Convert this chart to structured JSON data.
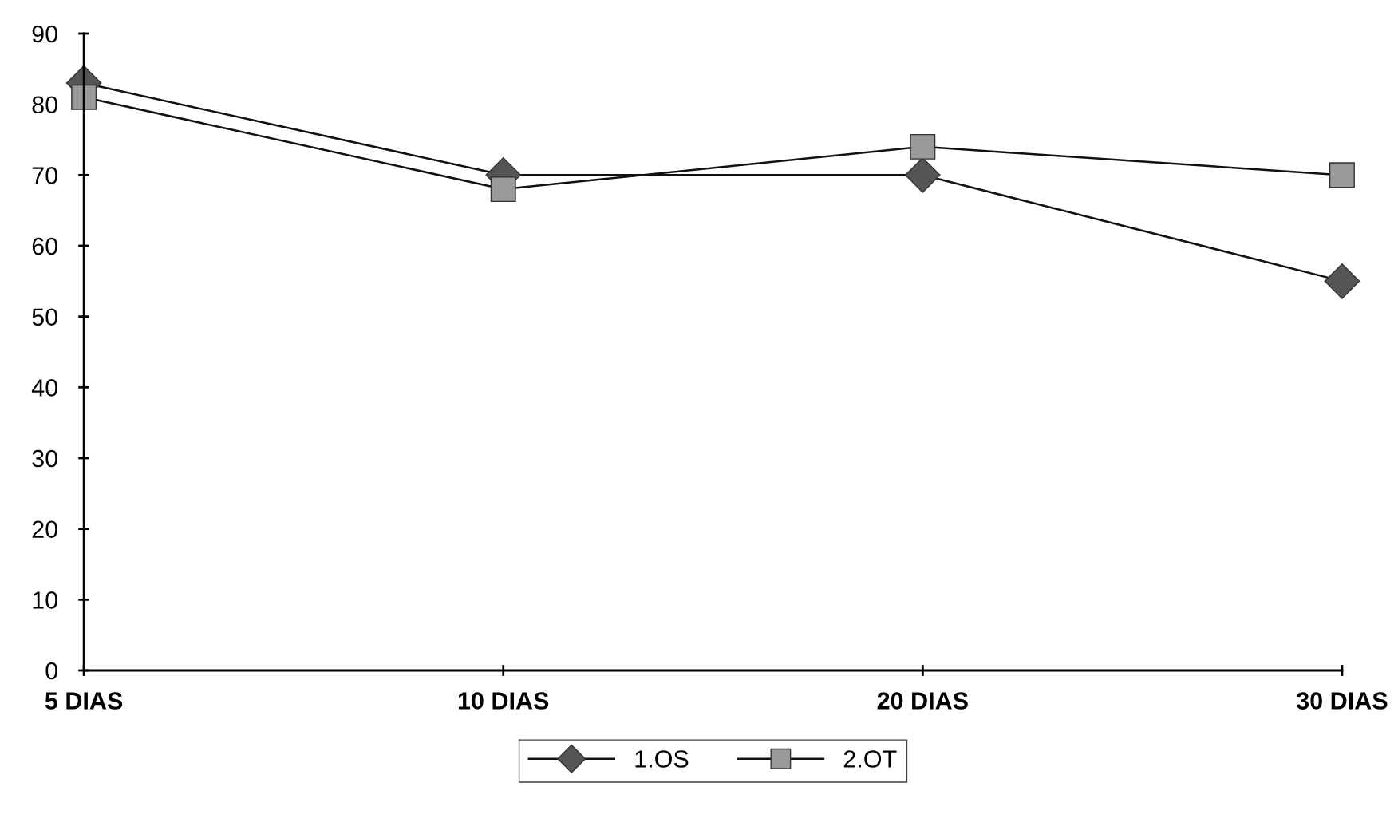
{
  "chart_data": {
    "type": "line",
    "categories": [
      "5 DIAS",
      "10 DIAS",
      "20 DIAS",
      "30 DIAS"
    ],
    "series": [
      {
        "name": "1.OS",
        "color": "#555555",
        "marker": "diamond",
        "values": [
          83,
          70,
          70,
          55
        ]
      },
      {
        "name": "2.OT",
        "color": "#9a9a9a",
        "marker": "square",
        "values": [
          81,
          68,
          74,
          70
        ]
      }
    ],
    "ylim": [
      0,
      90
    ],
    "yticks": [
      0,
      10,
      20,
      30,
      40,
      50,
      60,
      70,
      80,
      90
    ],
    "grid": false,
    "legend": "bottom",
    "line_style": "solid"
  }
}
